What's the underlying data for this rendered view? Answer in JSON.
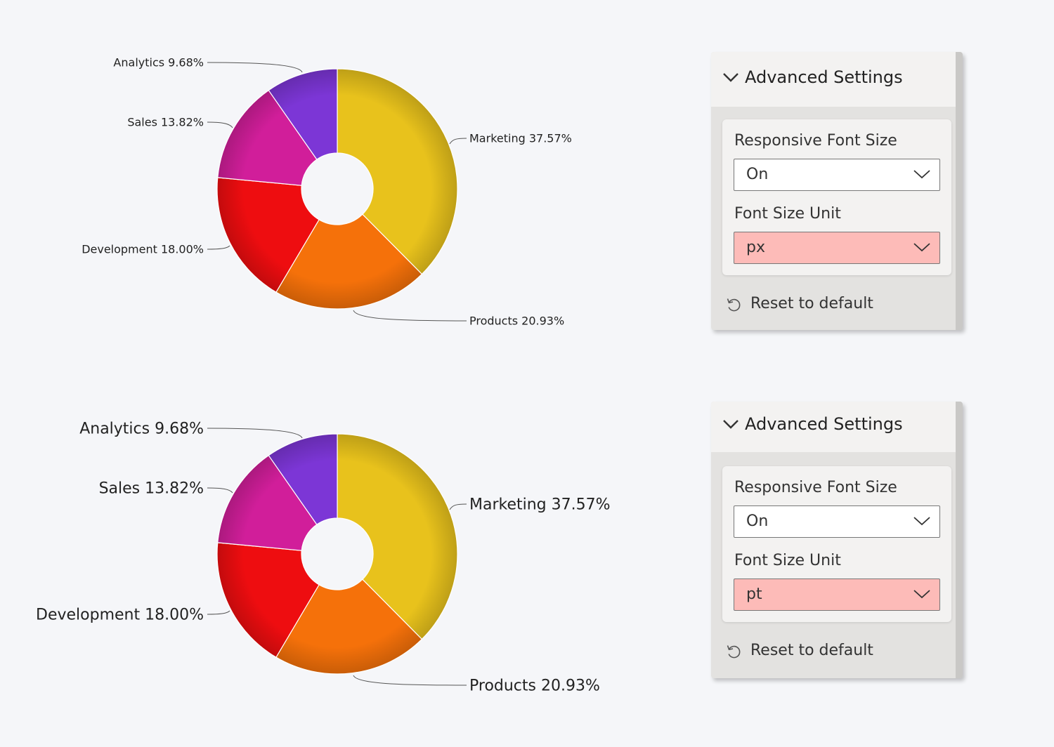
{
  "chart_data": [
    {
      "type": "pie",
      "variant": "donut",
      "label_format": "{name} {pct}%",
      "slices": [
        {
          "name": "Marketing",
          "pct": "37.57",
          "value": 37.57,
          "color": "#e8c21c"
        },
        {
          "name": "Products",
          "pct": "20.93",
          "value": 20.93,
          "color": "#f5710a"
        },
        {
          "name": "Development",
          "pct": "18.00",
          "value": 18.0,
          "color": "#ee0d10"
        },
        {
          "name": "Sales",
          "pct": "13.82",
          "value": 13.82,
          "color": "#d11e9a"
        },
        {
          "name": "Analytics",
          "pct": "9.68",
          "value": 9.68,
          "color": "#7c36d6"
        }
      ],
      "label_font_size": "small"
    },
    {
      "type": "pie",
      "variant": "donut",
      "label_format": "{name} {pct}%",
      "slices": [
        {
          "name": "Marketing",
          "pct": "37.57",
          "value": 37.57,
          "color": "#e8c21c"
        },
        {
          "name": "Products",
          "pct": "20.93",
          "value": 20.93,
          "color": "#f5710a"
        },
        {
          "name": "Development",
          "pct": "18.00",
          "value": 18.0,
          "color": "#ee0d10"
        },
        {
          "name": "Sales",
          "pct": "13.82",
          "value": 13.82,
          "color": "#d11e9a"
        },
        {
          "name": "Analytics",
          "pct": "9.68",
          "value": 9.68,
          "color": "#7c36d6"
        }
      ],
      "label_font_size": "large"
    }
  ],
  "panels": [
    {
      "title": "Advanced Settings",
      "responsive_label": "Responsive Font Size",
      "responsive_value": "On",
      "unit_label": "Font Size Unit",
      "unit_value": "px",
      "reset_label": "Reset to default"
    },
    {
      "title": "Advanced Settings",
      "responsive_label": "Responsive Font Size",
      "responsive_value": "On",
      "unit_label": "Font Size Unit",
      "unit_value": "pt",
      "reset_label": "Reset to default"
    }
  ],
  "colors": {
    "highlight_select": "#fdbbb8",
    "panel_bg": "#f3f2f1",
    "page_bg": "#f5f6f9"
  }
}
